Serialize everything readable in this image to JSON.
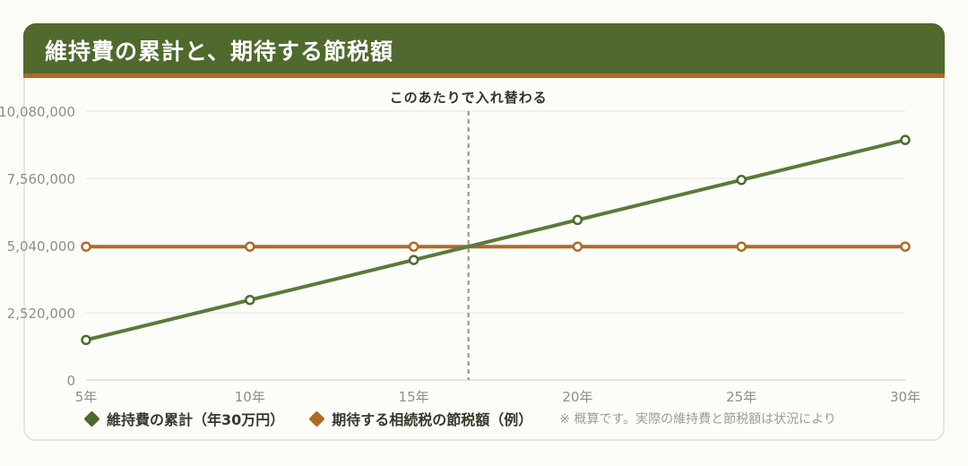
{
  "header": {
    "title": "維持費の累計と、期待する節税額"
  },
  "chart_data": {
    "type": "line",
    "categories": [
      "5年",
      "10年",
      "15年",
      "20年",
      "25年",
      "30年"
    ],
    "series": [
      {
        "name": "維持費の累計（年30万円）",
        "color": "#5a7a3a",
        "values": [
          1500000,
          3000000,
          4500000,
          6000000,
          7500000,
          9000000
        ]
      },
      {
        "name": "期待する相続税の節税額（例）",
        "color": "#b06a26",
        "values": [
          5000000,
          5000000,
          5000000,
          5000000,
          5000000,
          5000000
        ]
      }
    ],
    "y_ticks": [
      "0",
      "2,520,000",
      "5,040,000",
      "7,560,000",
      "10,080,000"
    ],
    "ylim": [
      0,
      10080000
    ],
    "grid": true,
    "annotation": {
      "label": "このあたりで入れ替わる",
      "x": 16.67
    },
    "note": "※ 概算です。実際の維持費と節税額は状況により"
  }
}
